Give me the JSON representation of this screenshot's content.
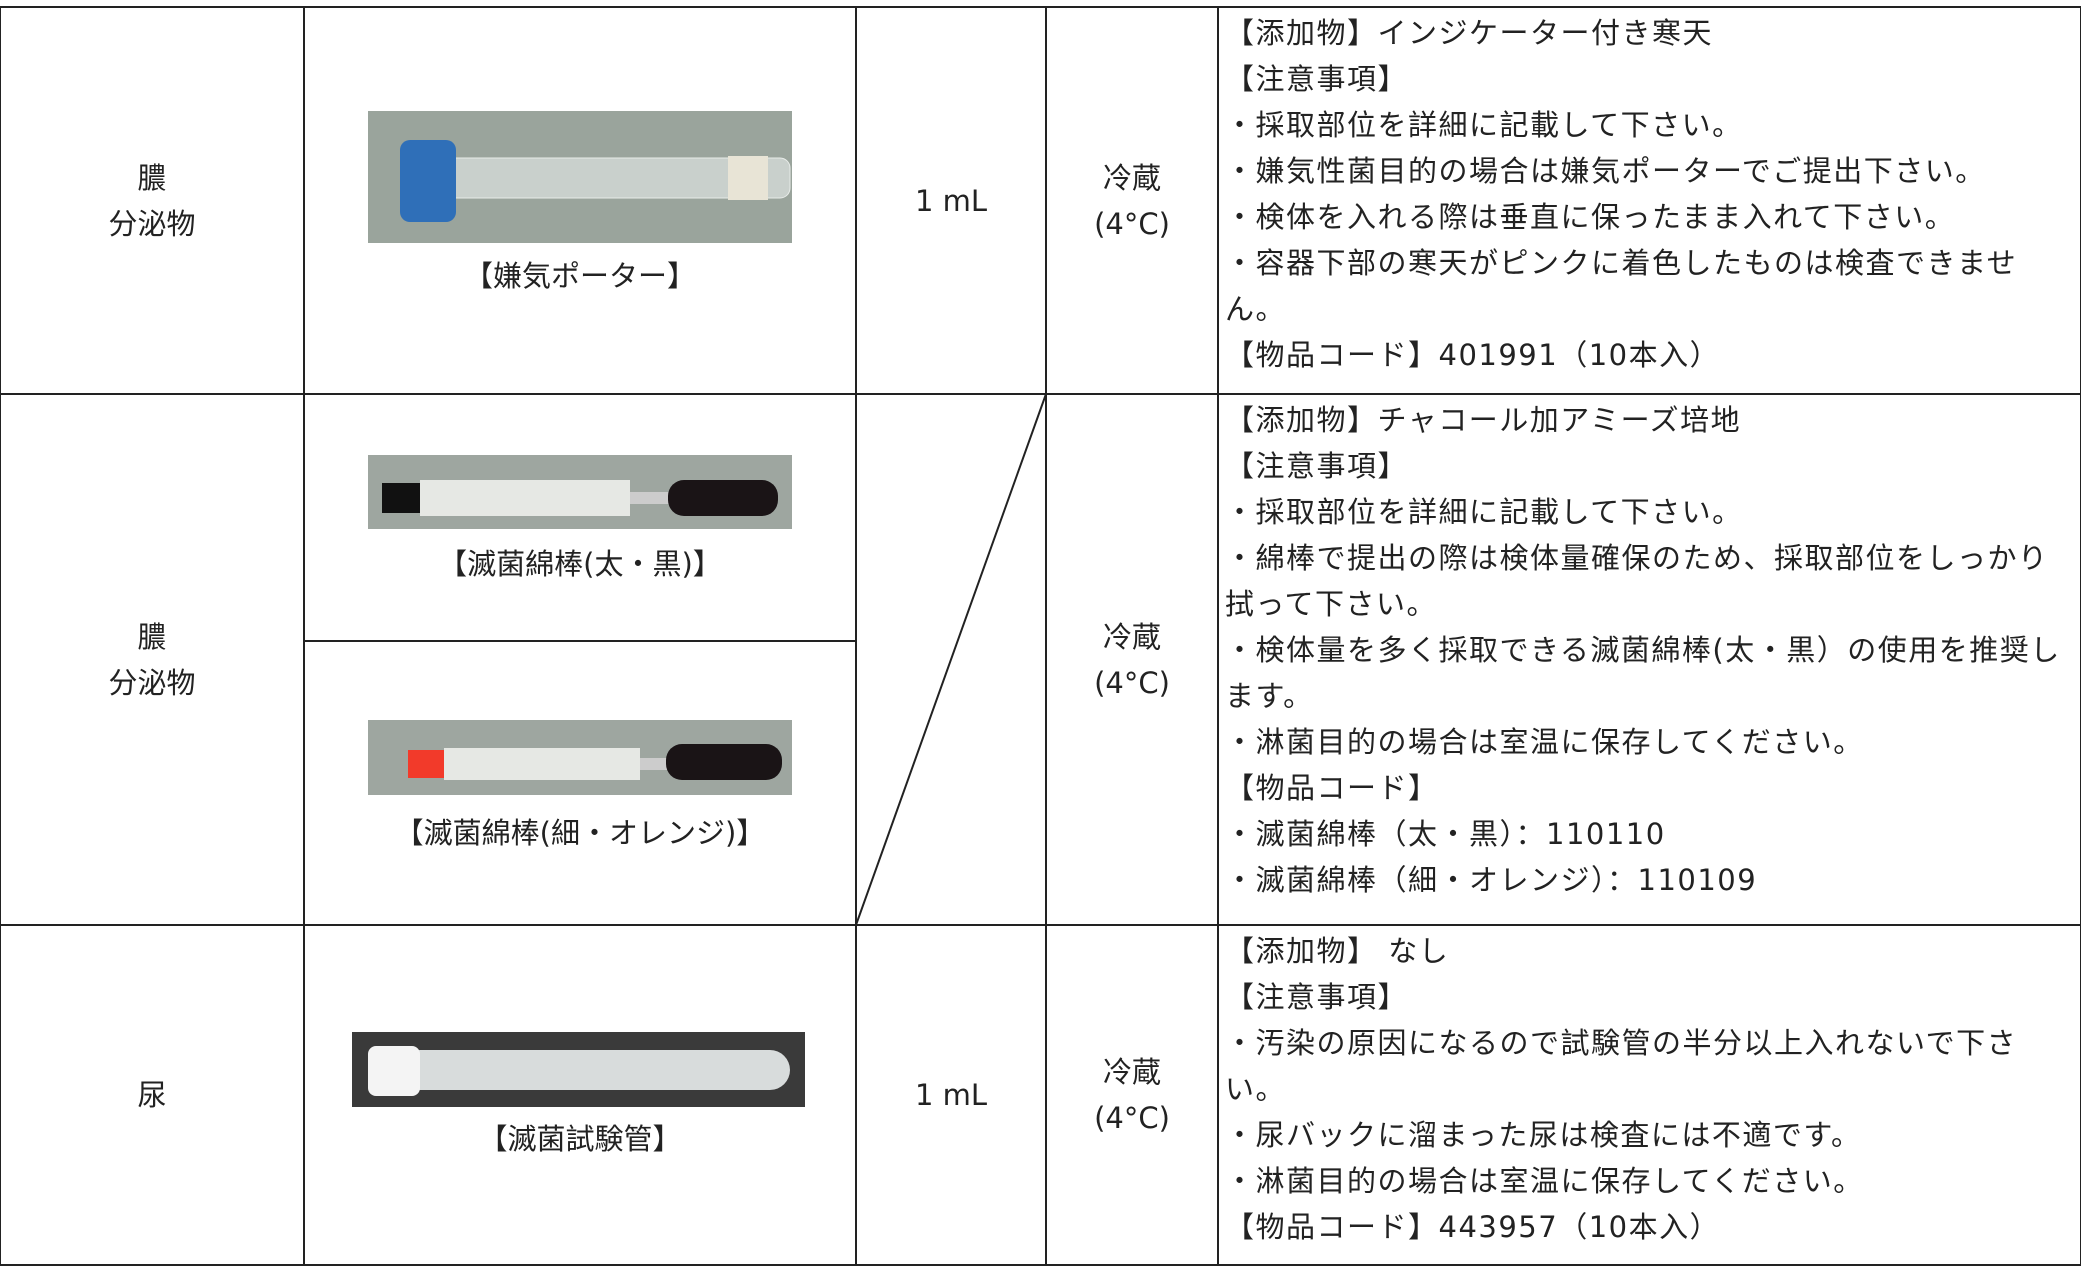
{
  "rows": [
    {
      "specimen": [
        "膿",
        "分泌物"
      ],
      "containers": [
        {
          "caption": "【嫌気ポーター】"
        }
      ],
      "volume": "1 mL",
      "storage": [
        "冷蔵",
        "(4°C)"
      ],
      "notes": [
        "【添加物】インジケーター付き寒天",
        "【注意事項】",
        "・採取部位を詳細に記載して下さい。",
        "・嫌気性菌目的の場合は嫌気ポーターでご提出下さい。",
        "・検体を入れる際は垂直に保ったまま入れて下さい。",
        "・容器下部の寒天がピンクに着色したものは検査できません。",
        "【物品コード】401991（10本入）"
      ]
    },
    {
      "specimen": [
        "膿",
        "分泌物"
      ],
      "containers": [
        {
          "caption": "【滅菌綿棒(太・黒)】"
        },
        {
          "caption": "【滅菌綿棒(細・オレンジ)】"
        }
      ],
      "storage": [
        "冷蔵",
        "(4°C)"
      ],
      "notes": [
        "【添加物】チャコール加アミーズ培地",
        "【注意事項】",
        "・採取部位を詳細に記載して下さい。",
        "・綿棒で提出の際は検体量確保のため、採取部位をしっかり拭って下さい。",
        "・検体量を多く採取できる滅菌綿棒(太・黒）の使用を推奨します。",
        "・淋菌目的の場合は室温に保存してください。",
        "【物品コード】",
        "・滅菌綿棒（太・黒）：110110",
        "・滅菌綿棒（細・オレンジ）：110109"
      ]
    },
    {
      "specimen": [
        "尿"
      ],
      "containers": [
        {
          "caption": "【滅菌試験管】"
        }
      ],
      "volume": "1 mL",
      "storage": [
        "冷蔵",
        "(4°C)"
      ],
      "notes": [
        "【添加物】 なし",
        "【注意事項】",
        "・汚染の原因になるので試験管の半分以上入れないで下さい。",
        "・尿バックに溜まった尿は検査には不適です。",
        "・淋菌目的の場合は室温に保存してください。",
        "【物品コード】443957（10本入）"
      ]
    }
  ]
}
